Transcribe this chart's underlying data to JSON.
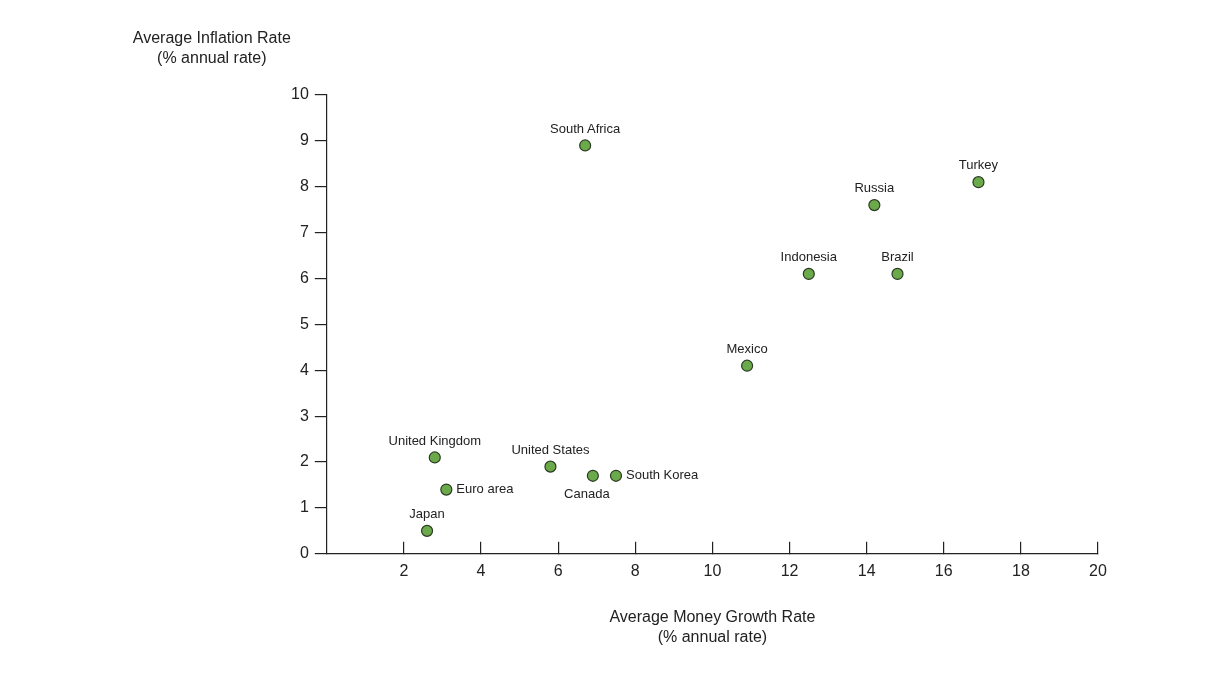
{
  "chart_data": {
    "type": "scatter",
    "xlabel": "Average Money Growth Rate\n(% annual rate)",
    "ylabel": "Average Inflation Rate\n(% annual rate)",
    "x": [
      6.7,
      16.9,
      14.2,
      12.5,
      14.8,
      10.9,
      2.8,
      5.8,
      6.9,
      7.5,
      3.1,
      2.6
    ],
    "values": [
      8.9,
      8.1,
      7.6,
      6.1,
      6.1,
      4.1,
      2.1,
      1.9,
      1.7,
      1.7,
      1.4,
      0.5
    ],
    "color": "#6aaa4a",
    "marker": "circle",
    "xlim": [
      0,
      20
    ],
    "xticks": [
      2,
      4,
      6,
      8,
      10,
      12,
      14,
      16,
      18,
      20
    ],
    "ylim": [
      0,
      10
    ],
    "yticks": [
      0,
      1,
      2,
      3,
      4,
      5,
      6,
      7,
      8,
      9,
      10
    ],
    "grid": false,
    "legend": false,
    "annotations": [
      {
        "text": "South Africa",
        "x": 6.7,
        "y": 8.9
      },
      {
        "text": "Turkey",
        "x": 16.9,
        "y": 8.1
      },
      {
        "text": "Russia",
        "x": 14.2,
        "y": 7.6
      },
      {
        "text": "Indonesia",
        "x": 12.5,
        "y": 6.1
      },
      {
        "text": "Brazil",
        "x": 14.8,
        "y": 6.1
      },
      {
        "text": "Mexico",
        "x": 10.9,
        "y": 4.1
      },
      {
        "text": "United Kingdom",
        "x": 2.8,
        "y": 2.1
      },
      {
        "text": "United States",
        "x": 5.8,
        "y": 1.9
      },
      {
        "text": "Canada",
        "x": 6.9,
        "y": 1.7
      },
      {
        "text": "South Korea",
        "x": 7.5,
        "y": 1.7
      },
      {
        "text": "Euro area",
        "x": 3.1,
        "y": 1.4
      },
      {
        "text": "Japan",
        "x": 2.6,
        "y": 0.5
      }
    ]
  }
}
